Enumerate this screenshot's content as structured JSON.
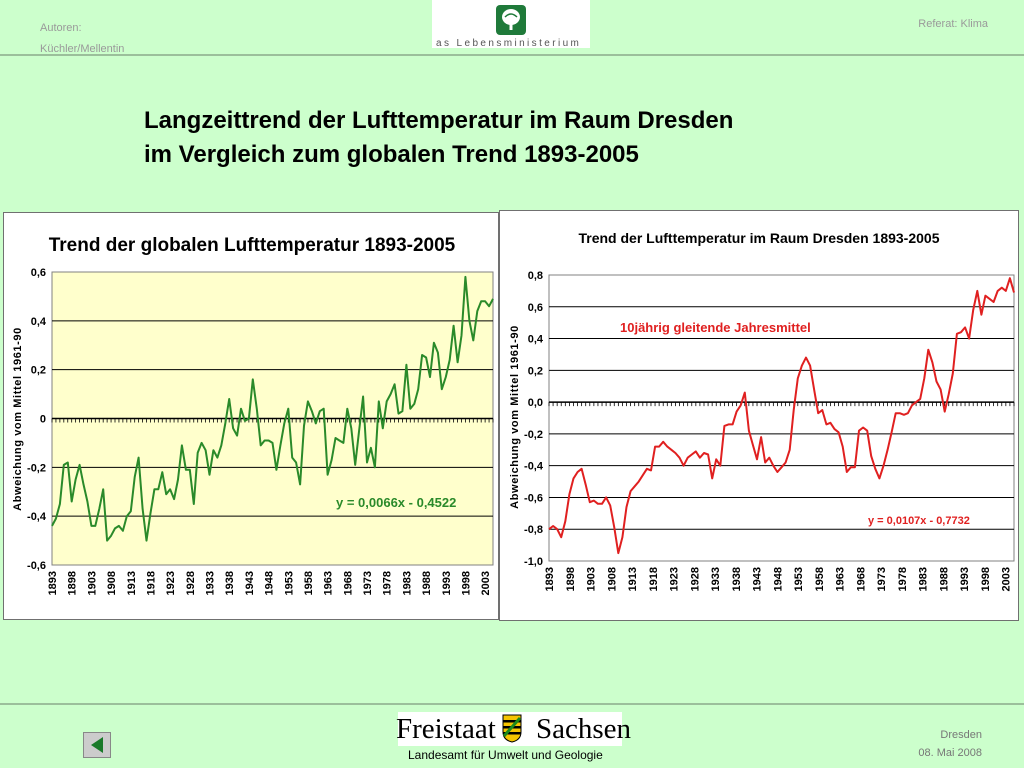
{
  "header": {
    "authors_label": "Autoren:",
    "authors": "Küchler/Mellentin",
    "logo_text": "as Lebensministerium",
    "right": "Referat: Klima"
  },
  "title": {
    "line1": "Langzeittrend der Lufttemperatur im Raum Dresden",
    "line2": "im Vergleich zum globalen Trend  1893-2005"
  },
  "footer": {
    "logo_word1": "Freistaat",
    "logo_word2": "Sachsen",
    "subtitle": "Landesamt für Umwelt und Geologie",
    "city": "Dresden",
    "date": "08. Mai 2008"
  },
  "chart_data": [
    {
      "type": "line",
      "title": "Trend der globalen  Lufttemperatur 1893-2005",
      "ylabel": "Abweichung vom  Mittel 1961-90",
      "xlabel": "",
      "ylim": [
        -0.6,
        0.6
      ],
      "y_ticks": [
        "0,6",
        "0,4",
        "0,2",
        "0",
        "-0,2",
        "-0,4",
        "-0,6"
      ],
      "x_ticks": [
        "1893",
        "1898",
        "1903",
        "1908",
        "1913",
        "1918",
        "1923",
        "1928",
        "1933",
        "1938",
        "1943",
        "1948",
        "1953",
        "1958",
        "1963",
        "1968",
        "1973",
        "1978",
        "1983",
        "1988",
        "1993",
        "1998",
        "2003"
      ],
      "grid": true,
      "x_start": 1893,
      "x_end": 2005,
      "color": "#2a8a2a",
      "annotation": "y = 0,0066x - 0,4522",
      "series": [
        {
          "values": [
            -0.44,
            -0.41,
            -0.35,
            -0.19,
            -0.18,
            -0.34,
            -0.25,
            -0.19,
            -0.27,
            -0.34,
            -0.44,
            -0.44,
            -0.37,
            -0.29,
            -0.5,
            -0.48,
            -0.45,
            -0.44,
            -0.46,
            -0.4,
            -0.38,
            -0.24,
            -0.16,
            -0.37,
            -0.5,
            -0.39,
            -0.29,
            -0.29,
            -0.22,
            -0.31,
            -0.29,
            -0.33,
            -0.25,
            -0.11,
            -0.21,
            -0.21,
            -0.35,
            -0.14,
            -0.1,
            -0.13,
            -0.23,
            -0.13,
            -0.16,
            -0.11,
            -0.02,
            0.08,
            -0.04,
            -0.07,
            0.04,
            -0.01,
            0.0,
            0.16,
            0.04,
            -0.11,
            -0.09,
            -0.09,
            -0.1,
            -0.21,
            -0.11,
            -0.02,
            0.04,
            -0.16,
            -0.18,
            -0.27,
            -0.03,
            0.07,
            0.03,
            -0.02,
            0.03,
            0.04,
            -0.23,
            -0.17,
            -0.08,
            -0.09,
            -0.1,
            0.04,
            -0.04,
            -0.19,
            -0.05,
            0.09,
            -0.18,
            -0.12,
            -0.2,
            0.07,
            -0.04,
            0.07,
            0.1,
            0.14,
            0.02,
            0.03,
            0.22,
            0.04,
            0.06,
            0.12,
            0.26,
            0.25,
            0.17,
            0.31,
            0.27,
            0.12,
            0.17,
            0.24,
            0.38,
            0.23,
            0.34,
            0.58,
            0.4,
            0.32,
            0.44,
            0.48,
            0.48,
            0.46,
            0.49
          ]
        }
      ]
    },
    {
      "type": "line",
      "title": "Trend der Lufttemperatur im Raum Dresden 1893-2005",
      "ylabel": "Abweichung vom Mittel 1961-90",
      "xlabel": "",
      "ylim": [
        -1.0,
        0.8
      ],
      "y_ticks": [
        "0,8",
        "0,6",
        "0,4",
        "0,2",
        "0,0",
        "-0,2",
        "-0,4",
        "-0,6",
        "-0,8",
        "-1,0"
      ],
      "x_ticks": [
        "1893",
        "1898",
        "1903",
        "1908",
        "1913",
        "1918",
        "1923",
        "1928",
        "1933",
        "1938",
        "1943",
        "1948",
        "1953",
        "1958",
        "1963",
        "1968",
        "1973",
        "1978",
        "1983",
        "1988",
        "1993",
        "1998",
        "2003"
      ],
      "grid": true,
      "x_start": 1893,
      "x_end": 2005,
      "color": "#e02020",
      "legend_label": "10jährig gleitende Jahresmittel",
      "annotation": "y = 0,0107x - 0,7732",
      "series": [
        {
          "name": "10jährig gleitende Jahresmittel",
          "values": [
            -0.8,
            -0.78,
            -0.8,
            -0.85,
            -0.75,
            -0.58,
            -0.48,
            -0.44,
            -0.42,
            -0.52,
            -0.63,
            -0.62,
            -0.64,
            -0.64,
            -0.6,
            -0.65,
            -0.79,
            -0.95,
            -0.85,
            -0.66,
            -0.56,
            -0.53,
            -0.5,
            -0.46,
            -0.42,
            -0.43,
            -0.28,
            -0.28,
            -0.25,
            -0.28,
            -0.3,
            -0.32,
            -0.35,
            -0.4,
            -0.35,
            -0.33,
            -0.31,
            -0.35,
            -0.32,
            -0.33,
            -0.48,
            -0.36,
            -0.4,
            -0.15,
            -0.14,
            -0.14,
            -0.06,
            -0.02,
            0.06,
            -0.18,
            -0.27,
            -0.36,
            -0.22,
            -0.38,
            -0.35,
            -0.4,
            -0.44,
            -0.41,
            -0.38,
            -0.3,
            -0.05,
            0.15,
            0.23,
            0.28,
            0.23,
            0.08,
            -0.07,
            -0.05,
            -0.14,
            -0.13,
            -0.17,
            -0.19,
            -0.28,
            -0.44,
            -0.41,
            -0.41,
            -0.18,
            -0.16,
            -0.18,
            -0.34,
            -0.42,
            -0.48,
            -0.4,
            -0.3,
            -0.19,
            -0.07,
            -0.07,
            -0.08,
            -0.07,
            -0.02,
            0.0,
            0.02,
            0.15,
            0.33,
            0.25,
            0.13,
            0.08,
            -0.06,
            0.05,
            0.18,
            0.43,
            0.44,
            0.47,
            0.4,
            0.58,
            0.7,
            0.55,
            0.67,
            0.65,
            0.63,
            0.7,
            0.72,
            0.7,
            0.78,
            0.69
          ]
        }
      ]
    }
  ]
}
